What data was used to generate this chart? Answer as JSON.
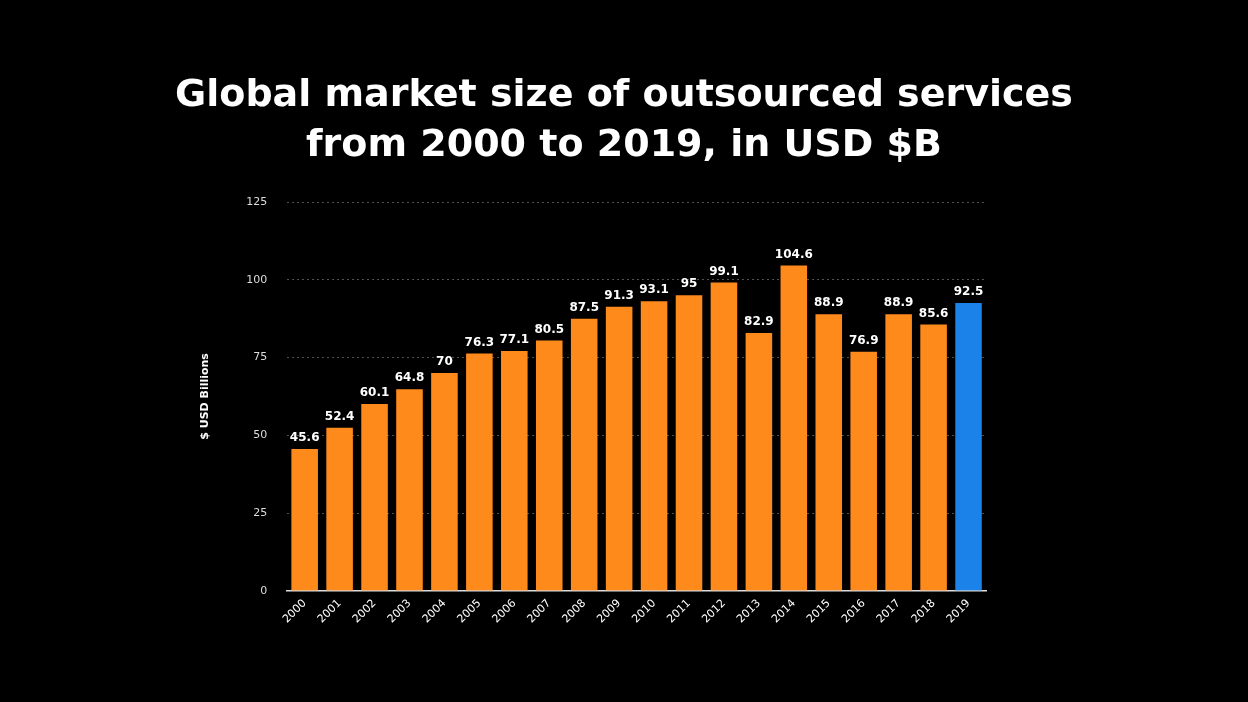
{
  "chart_data": {
    "type": "bar",
    "title": "Global market size of outsourced services from 2000 to 2019, in USD $B",
    "ylabel": "$ USD Billions",
    "categories": [
      "2000",
      "2001",
      "2002",
      "2003",
      "2004",
      "2005",
      "2006",
      "2007",
      "2008",
      "2009",
      "2010",
      "2011",
      "2012",
      "2013",
      "2014",
      "2015",
      "2016",
      "2017",
      "2018",
      "2019"
    ],
    "values": [
      45.6,
      52.4,
      60.1,
      64.8,
      70,
      76.3,
      77.1,
      80.5,
      87.5,
      91.3,
      93.1,
      95,
      99.1,
      82.9,
      104.6,
      88.9,
      76.9,
      88.9,
      85.6,
      92.5
    ],
    "colors": [
      "#ff8a1c",
      "#ff8a1c",
      "#ff8a1c",
      "#ff8a1c",
      "#ff8a1c",
      "#ff8a1c",
      "#ff8a1c",
      "#ff8a1c",
      "#ff8a1c",
      "#ff8a1c",
      "#ff8a1c",
      "#ff8a1c",
      "#ff8a1c",
      "#ff8a1c",
      "#ff8a1c",
      "#ff8a1c",
      "#ff8a1c",
      "#ff8a1c",
      "#ff8a1c",
      "#1a82e8"
    ],
    "ylim": [
      0,
      125
    ],
    "yticks": [
      0,
      25,
      50,
      75,
      100,
      125
    ],
    "grid": "y",
    "legend": false,
    "data_labels": true
  }
}
